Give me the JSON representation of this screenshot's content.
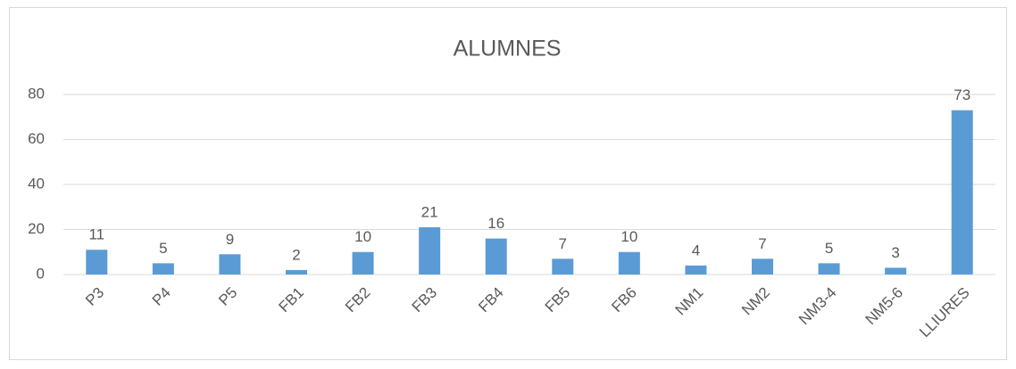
{
  "chart_data": {
    "type": "bar",
    "title": "ALUMNES",
    "categories": [
      "P3",
      "P4",
      "P5",
      "FB1",
      "FB2",
      "FB3",
      "FB4",
      "FB5",
      "FB6",
      "NM1",
      "NM2",
      "NM3-4",
      "NM5-6",
      "LLIURES"
    ],
    "values": [
      11,
      5,
      9,
      2,
      10,
      21,
      16,
      7,
      10,
      4,
      7,
      5,
      3,
      73
    ],
    "color": "#5b9bd5",
    "ylim": [
      0,
      80
    ],
    "yticks": [
      0,
      20,
      40,
      60,
      80
    ],
    "grid": true
  }
}
